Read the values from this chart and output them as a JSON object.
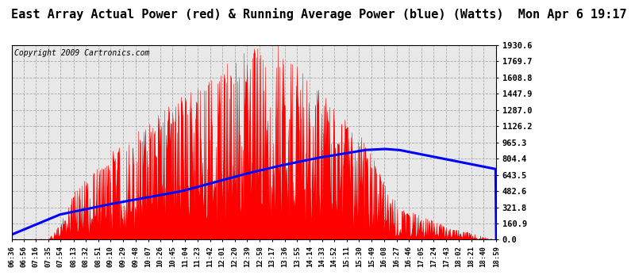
{
  "title": "East Array Actual Power (red) & Running Average Power (blue) (Watts)  Mon Apr 6 19:17",
  "copyright": "Copyright 2009 Cartronics.com",
  "y_ticks": [
    0.0,
    160.9,
    321.8,
    482.6,
    643.5,
    804.4,
    965.3,
    1126.2,
    1287.0,
    1447.9,
    1608.8,
    1769.7,
    1930.6
  ],
  "y_max": 1930.6,
  "x_labels": [
    "06:36",
    "06:56",
    "07:16",
    "07:35",
    "07:54",
    "08:13",
    "08:32",
    "08:51",
    "09:10",
    "09:29",
    "09:48",
    "10:07",
    "10:26",
    "10:45",
    "11:04",
    "11:23",
    "11:42",
    "12:01",
    "12:20",
    "12:39",
    "12:58",
    "13:17",
    "13:36",
    "13:55",
    "14:14",
    "14:33",
    "14:52",
    "15:11",
    "15:30",
    "15:49",
    "16:08",
    "16:27",
    "16:46",
    "17:05",
    "17:24",
    "17:43",
    "18:02",
    "18:21",
    "18:40",
    "18:59"
  ],
  "bg_color": "#ffffff",
  "plot_bg_color": "#e8e8e8",
  "grid_color": "#aaaaaa",
  "actual_color": "#ff0000",
  "avg_color": "#0000ff",
  "title_fontsize": 11,
  "copyright_fontsize": 7,
  "tick_fontsize": 6.5,
  "ytick_fontsize": 7.5
}
